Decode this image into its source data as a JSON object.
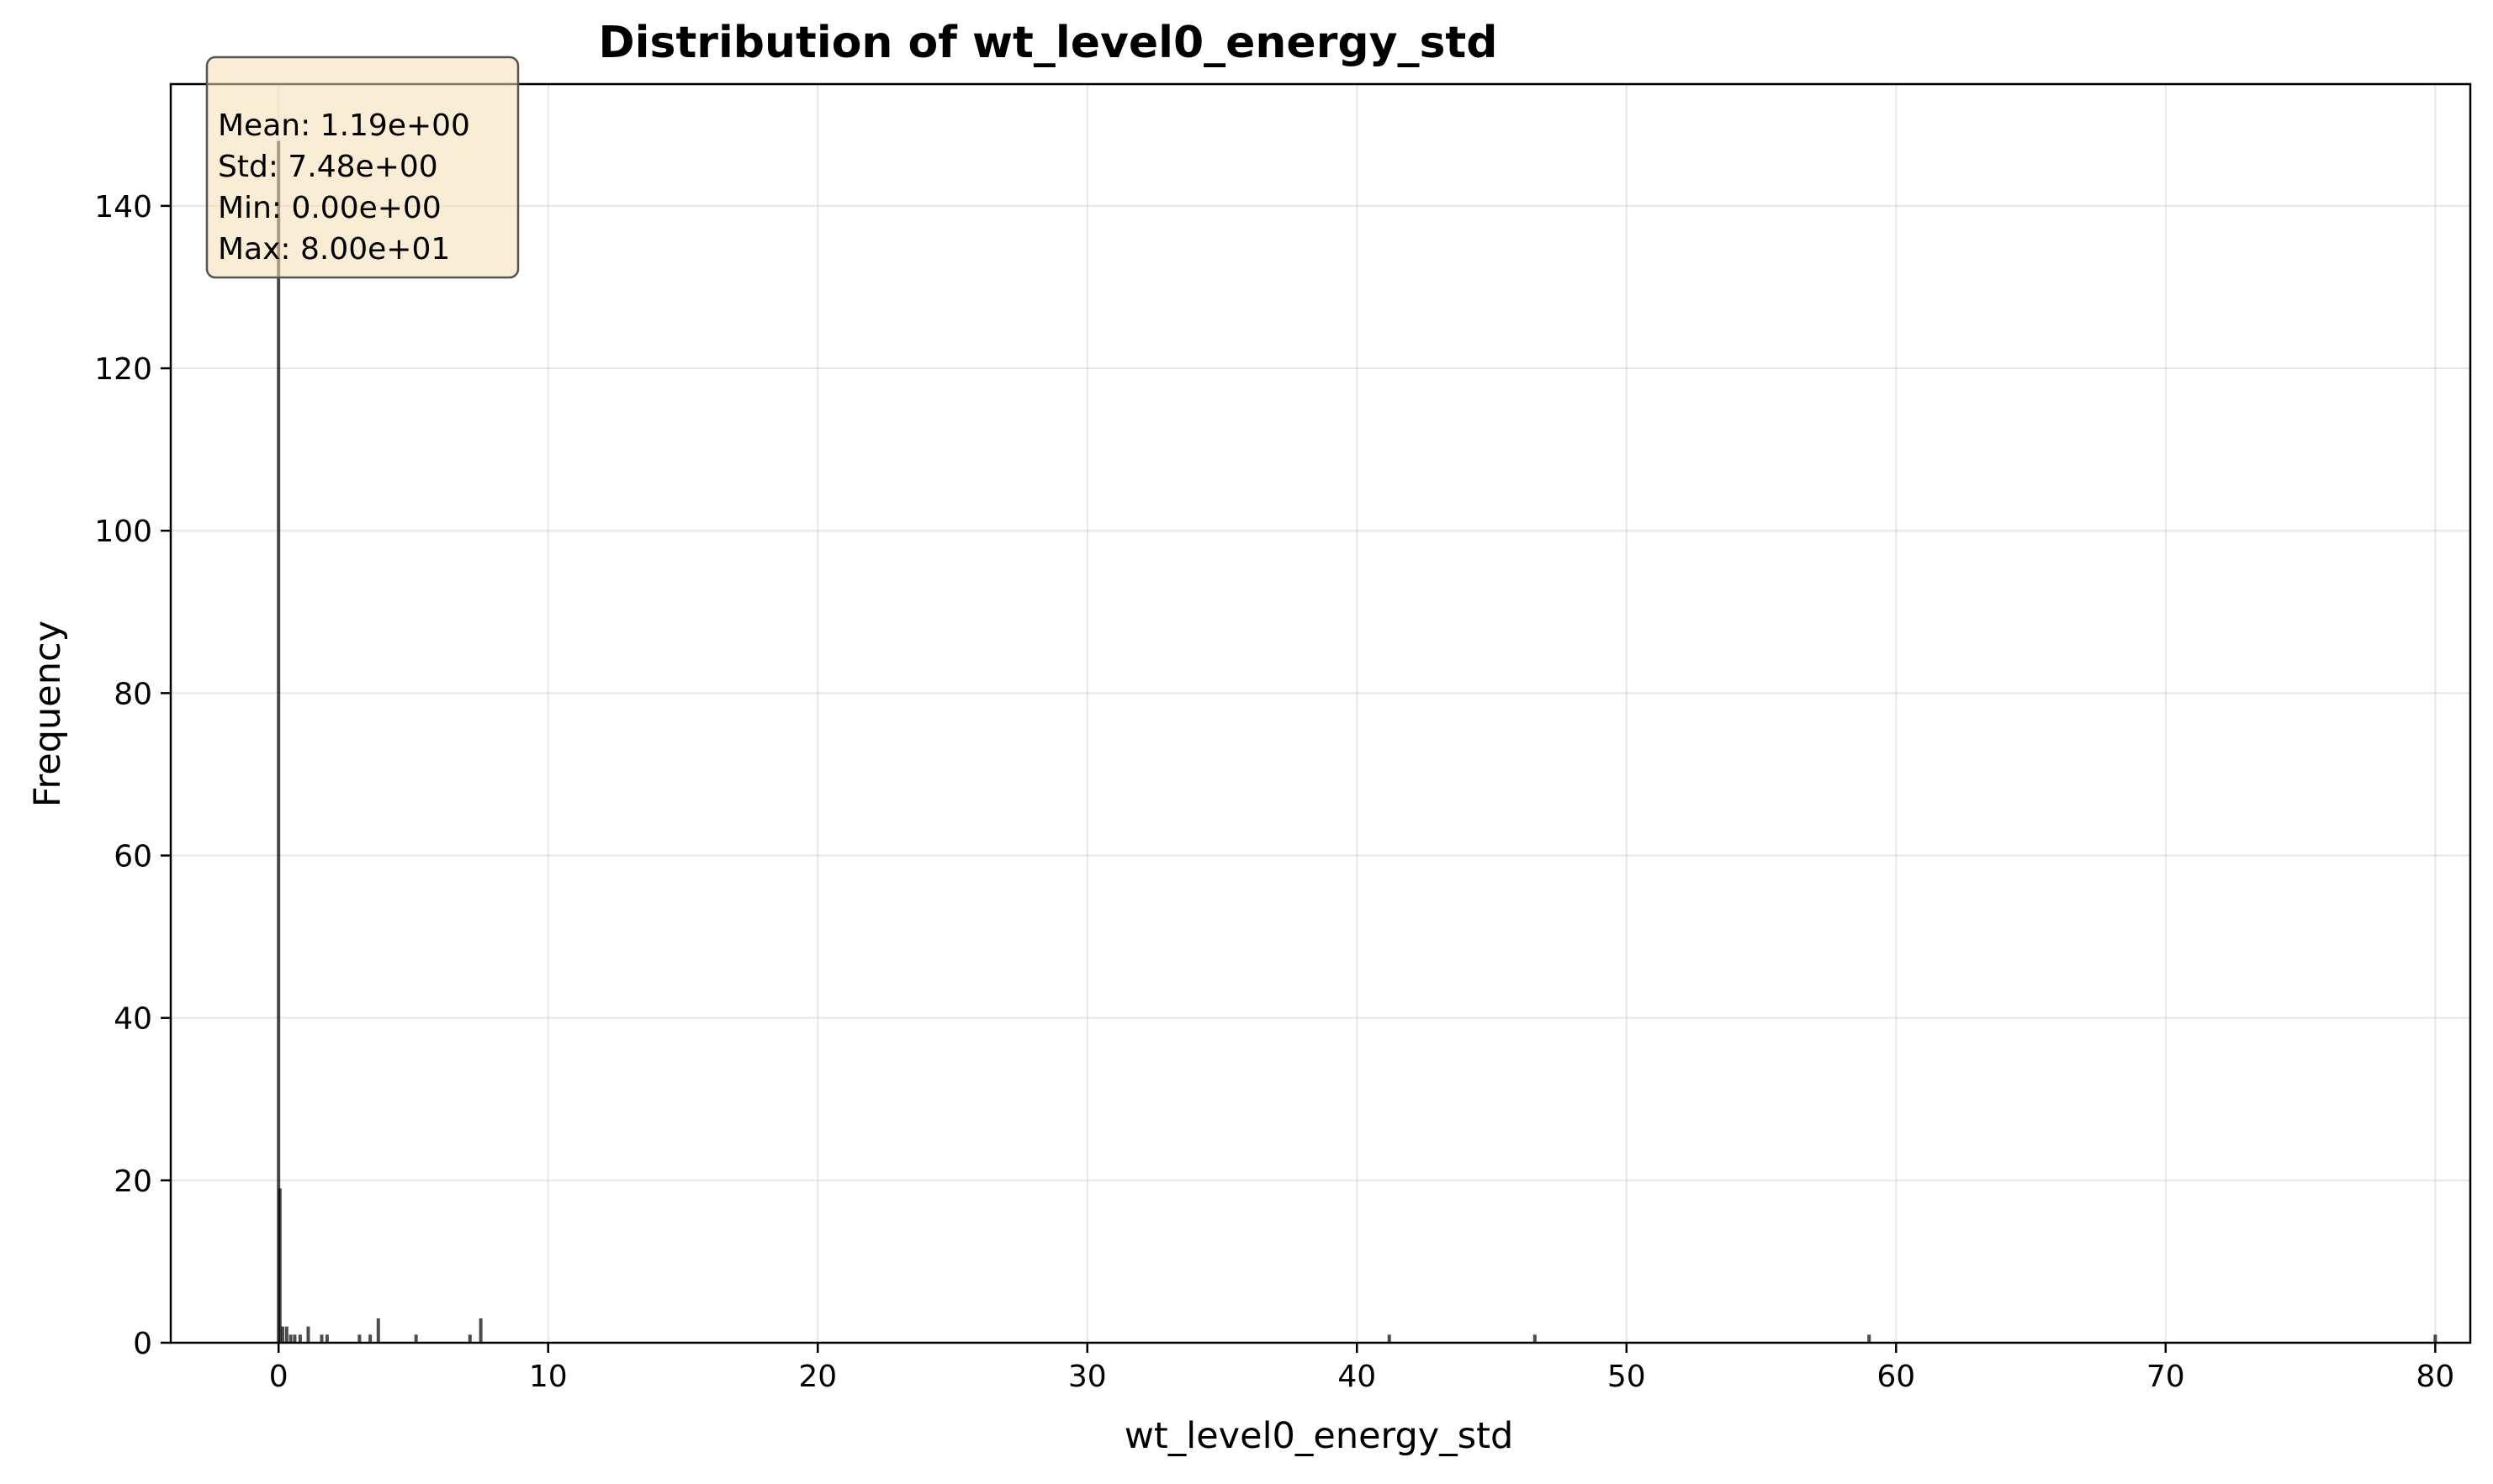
{
  "chart_data": {
    "type": "bar",
    "title": "Distribution of wt_level0_energy_std",
    "xlabel": "wt_level0_energy_std",
    "ylabel": "Frequency",
    "xlim": [
      -4,
      81.3
    ],
    "ylim": [
      0,
      155
    ],
    "x_ticks": [
      "0",
      "10",
      "20",
      "30",
      "40",
      "50",
      "60",
      "70",
      "80"
    ],
    "y_ticks": [
      "0",
      "20",
      "40",
      "60",
      "80",
      "100",
      "120",
      "140"
    ],
    "grid": true,
    "bar_color": "#000000",
    "bar_opacity": 0.7,
    "stats_box": {
      "mean": "Mean: 1.19e+00",
      "std": "Std: 7.48e+00",
      "min": "Min: 0.00e+00",
      "max": "Max: 8.00e+01",
      "background": "#f5deb3"
    },
    "bins": [
      {
        "x": 0.0,
        "count": 148
      },
      {
        "x": 0.05,
        "count": 19
      },
      {
        "x": 0.15,
        "count": 2
      },
      {
        "x": 0.3,
        "count": 2
      },
      {
        "x": 0.45,
        "count": 1
      },
      {
        "x": 0.6,
        "count": 1
      },
      {
        "x": 0.8,
        "count": 1
      },
      {
        "x": 1.1,
        "count": 2
      },
      {
        "x": 1.6,
        "count": 1
      },
      {
        "x": 1.8,
        "count": 1
      },
      {
        "x": 3.0,
        "count": 1
      },
      {
        "x": 3.4,
        "count": 1
      },
      {
        "x": 3.7,
        "count": 3
      },
      {
        "x": 5.1,
        "count": 1
      },
      {
        "x": 7.1,
        "count": 1
      },
      {
        "x": 7.5,
        "count": 3
      },
      {
        "x": 41.2,
        "count": 1
      },
      {
        "x": 46.6,
        "count": 1
      },
      {
        "x": 59.0,
        "count": 1
      },
      {
        "x": 80.0,
        "count": 1
      }
    ]
  }
}
